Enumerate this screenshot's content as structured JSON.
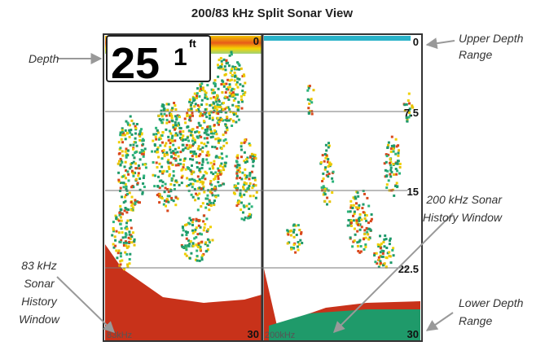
{
  "title": "200/83 kHz Split Sonar View",
  "screen": {
    "depth_whole": "25",
    "depth_decimal": "1",
    "depth_unit": "ft",
    "left_panel": {
      "top_range": "0",
      "bottom_range": "30",
      "frequency": "83kHz"
    },
    "right_panel": {
      "scale": [
        "0",
        "7.5",
        "15",
        "22.5",
        "30"
      ],
      "frequency": "200kHz"
    }
  },
  "callouts": [
    {
      "lines": [
        "Depth"
      ]
    },
    {
      "lines": [
        "Upper Depth",
        "Range"
      ]
    },
    {
      "lines": [
        "200 kHz Sonar",
        "History Window"
      ]
    },
    {
      "lines": [
        "83 kHz",
        "Sonar",
        "History",
        "Window"
      ]
    },
    {
      "lines": [
        "Lower Depth",
        "Range"
      ]
    }
  ]
}
